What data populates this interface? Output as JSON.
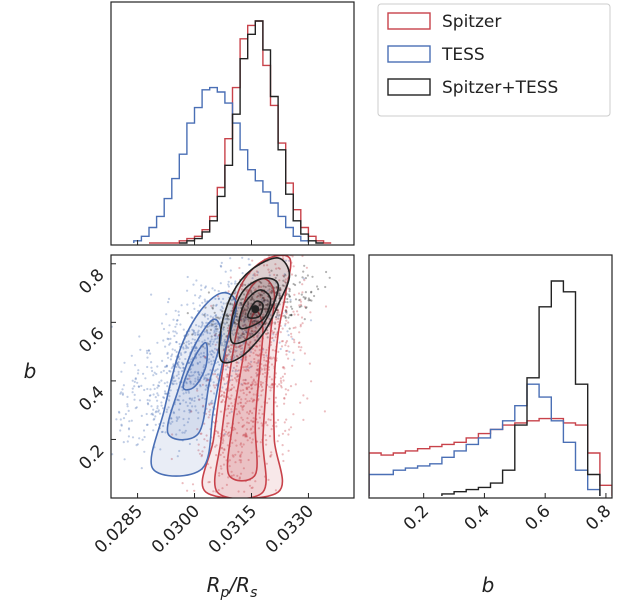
{
  "chart_data": [
    {
      "panel": "top-left",
      "type": "histogram",
      "x_param": "Rp/Rs",
      "xlim": [
        0.0278,
        0.0342
      ],
      "bin_width": 0.0002,
      "series": [
        {
          "name": "Spitzer",
          "color": "#c8424a",
          "x": [
            0.0289,
            0.0291,
            0.0293,
            0.0295,
            0.0297,
            0.0299,
            0.0301,
            0.0303,
            0.0305,
            0.0307,
            0.0309,
            0.0311,
            0.0313,
            0.0315,
            0.0317,
            0.0319,
            0.0321,
            0.0323,
            0.0325,
            0.0327,
            0.0329,
            0.0331,
            0.0333,
            0.0335
          ],
          "values": [
            0.0,
            0.0,
            0.0,
            0.0,
            0.01,
            0.02,
            0.03,
            0.06,
            0.12,
            0.25,
            0.47,
            0.7,
            0.92,
            0.98,
            1.0,
            0.8,
            0.62,
            0.45,
            0.27,
            0.15,
            0.07,
            0.03,
            0.01,
            0.0
          ]
        },
        {
          "name": "TESS",
          "color": "#4a6fb5",
          "x": [
            0.0285,
            0.0287,
            0.0289,
            0.0291,
            0.0293,
            0.0295,
            0.0297,
            0.0299,
            0.0301,
            0.0303,
            0.0305,
            0.0307,
            0.0309,
            0.0311,
            0.0313,
            0.0315,
            0.0317,
            0.0319,
            0.0321,
            0.0323,
            0.0325,
            0.0327,
            0.0329
          ],
          "values": [
            0.01,
            0.03,
            0.07,
            0.12,
            0.2,
            0.29,
            0.4,
            0.54,
            0.61,
            0.69,
            0.7,
            0.68,
            0.63,
            0.54,
            0.42,
            0.33,
            0.28,
            0.23,
            0.18,
            0.12,
            0.07,
            0.03,
            0.01
          ]
        },
        {
          "name": "Spitzer+TESS",
          "color": "#222222",
          "x": [
            0.0297,
            0.0299,
            0.0301,
            0.0303,
            0.0305,
            0.0307,
            0.0309,
            0.0311,
            0.0313,
            0.0315,
            0.0317,
            0.0319,
            0.0321,
            0.0323,
            0.0325,
            0.0327,
            0.0329,
            0.0331,
            0.0333
          ],
          "values": [
            0.0,
            0.01,
            0.02,
            0.05,
            0.1,
            0.21,
            0.35,
            0.58,
            0.83,
            0.94,
            1.0,
            0.87,
            0.66,
            0.42,
            0.22,
            0.1,
            0.04,
            0.01,
            0.0
          ]
        }
      ]
    },
    {
      "panel": "bottom-left",
      "type": "scatter",
      "xlabel": "R_p/R_s",
      "ylabel": "b",
      "xlim": [
        0.0278,
        0.0342
      ],
      "ylim": [
        0.0,
        0.83
      ],
      "xticks": [
        "0.0285",
        "0.0300",
        "0.0315",
        "0.0330"
      ],
      "yticks": [
        "0.2",
        "0.4",
        "0.6",
        "0.8"
      ],
      "contours": [
        {
          "name": "Spitzer",
          "color": "#c8424a",
          "levels": [
            [
              [
                0.0303,
                0.02
              ],
              [
                0.0305,
                0.2
              ],
              [
                0.0307,
                0.4
              ],
              [
                0.0309,
                0.56
              ],
              [
                0.0312,
                0.72
              ],
              [
                0.0318,
                0.81
              ],
              [
                0.0325,
                0.82
              ],
              [
                0.0324,
                0.7
              ],
              [
                0.0322,
                0.56
              ],
              [
                0.0321,
                0.4
              ],
              [
                0.0321,
                0.2
              ],
              [
                0.0322,
                0.02
              ]
            ],
            [
              [
                0.0306,
                0.02
              ],
              [
                0.0307,
                0.2
              ],
              [
                0.0309,
                0.4
              ],
              [
                0.0311,
                0.56
              ],
              [
                0.0314,
                0.7
              ],
              [
                0.0318,
                0.75
              ],
              [
                0.0321,
                0.7
              ],
              [
                0.032,
                0.56
              ],
              [
                0.0319,
                0.4
              ],
              [
                0.0318,
                0.2
              ],
              [
                0.0318,
                0.02
              ]
            ],
            [
              [
                0.0309,
                0.08
              ],
              [
                0.031,
                0.25
              ],
              [
                0.0312,
                0.42
              ],
              [
                0.0314,
                0.56
              ],
              [
                0.0316,
                0.64
              ],
              [
                0.0318,
                0.58
              ],
              [
                0.0317,
                0.42
              ],
              [
                0.0316,
                0.25
              ],
              [
                0.0316,
                0.08
              ]
            ]
          ]
        },
        {
          "name": "TESS",
          "color": "#4a6fb5",
          "levels": [
            [
              [
                0.0289,
                0.1
              ],
              [
                0.0292,
                0.3
              ],
              [
                0.0296,
                0.5
              ],
              [
                0.0301,
                0.63
              ],
              [
                0.0307,
                0.7
              ],
              [
                0.0311,
                0.66
              ],
              [
                0.0308,
                0.5
              ],
              [
                0.0305,
                0.3
              ],
              [
                0.0302,
                0.1
              ]
            ],
            [
              [
                0.0293,
                0.22
              ],
              [
                0.0296,
                0.38
              ],
              [
                0.03,
                0.52
              ],
              [
                0.0305,
                0.61
              ],
              [
                0.0307,
                0.55
              ],
              [
                0.0304,
                0.4
              ],
              [
                0.0301,
                0.22
              ]
            ],
            [
              [
                0.0297,
                0.38
              ],
              [
                0.03,
                0.48
              ],
              [
                0.0303,
                0.53
              ],
              [
                0.0303,
                0.45
              ],
              [
                0.03,
                0.38
              ]
            ]
          ]
        },
        {
          "name": "Spitzer+TESS",
          "color": "#222222",
          "levels": [
            [
              [
                0.0307,
                0.47
              ],
              [
                0.0307,
                0.58
              ],
              [
                0.031,
                0.7
              ],
              [
                0.0315,
                0.78
              ],
              [
                0.0322,
                0.82
              ],
              [
                0.0325,
                0.76
              ],
              [
                0.0322,
                0.66
              ],
              [
                0.0318,
                0.56
              ],
              [
                0.0312,
                0.48
              ]
            ],
            [
              [
                0.031,
                0.53
              ],
              [
                0.031,
                0.62
              ],
              [
                0.0313,
                0.71
              ],
              [
                0.0318,
                0.75
              ],
              [
                0.0322,
                0.73
              ],
              [
                0.032,
                0.64
              ],
              [
                0.0316,
                0.56
              ]
            ],
            [
              [
                0.0312,
                0.58
              ],
              [
                0.0313,
                0.66
              ],
              [
                0.0317,
                0.71
              ],
              [
                0.032,
                0.68
              ],
              [
                0.0318,
                0.61
              ]
            ],
            [
              [
                0.0314,
                0.62
              ],
              [
                0.0316,
                0.67
              ],
              [
                0.0318,
                0.66
              ],
              [
                0.0317,
                0.62
              ]
            ]
          ]
        }
      ],
      "point_clouds": [
        {
          "name": "TESS",
          "color": "#4a6fb5",
          "center": [
            0.0301,
            0.48
          ],
          "spread": [
            0.0008,
            0.15
          ],
          "tilt": 230,
          "n": 900,
          "clip_y": [
            0.02,
            0.83
          ]
        },
        {
          "name": "Spitzer",
          "color": "#c8424a",
          "center": [
            0.0315,
            0.42
          ],
          "spread": [
            0.0006,
            0.21
          ],
          "tilt": 35,
          "n": 900,
          "clip_y": [
            0.02,
            0.83
          ]
        },
        {
          "name": "Spitzer+TESS",
          "color": "#222222",
          "center": [
            0.0317,
            0.65
          ],
          "spread": [
            0.0006,
            0.05
          ],
          "tilt": 80,
          "n": 400,
          "clip_y": [
            0.02,
            0.83
          ]
        }
      ],
      "peak": {
        "x": 0.0316,
        "y": 0.645
      }
    },
    {
      "panel": "bottom-right",
      "type": "histogram",
      "xlabel": "b",
      "xlim": [
        0.02,
        0.82
      ],
      "xticks": [
        "0.2",
        "0.4",
        "0.6",
        "0.8"
      ],
      "bin_width": 0.04,
      "series": [
        {
          "name": "Spitzer",
          "color": "#c8424a",
          "x": [
            0.04,
            0.08,
            0.12,
            0.16,
            0.2,
            0.24,
            0.28,
            0.32,
            0.36,
            0.4,
            0.44,
            0.48,
            0.52,
            0.56,
            0.6,
            0.64,
            0.68,
            0.72,
            0.76,
            0.8
          ],
          "values": [
            0.2,
            0.19,
            0.2,
            0.21,
            0.22,
            0.23,
            0.24,
            0.25,
            0.27,
            0.29,
            0.31,
            0.33,
            0.34,
            0.35,
            0.36,
            0.36,
            0.34,
            0.33,
            0.2,
            0.05
          ]
        },
        {
          "name": "TESS",
          "color": "#4a6fb5",
          "x": [
            0.04,
            0.08,
            0.12,
            0.16,
            0.2,
            0.24,
            0.28,
            0.32,
            0.36,
            0.4,
            0.44,
            0.48,
            0.52,
            0.56,
            0.6,
            0.64,
            0.68,
            0.72,
            0.76
          ],
          "values": [
            0.1,
            0.1,
            0.12,
            0.13,
            0.14,
            0.15,
            0.18,
            0.21,
            0.24,
            0.27,
            0.31,
            0.35,
            0.42,
            0.52,
            0.46,
            0.35,
            0.25,
            0.12,
            0.03
          ]
        },
        {
          "name": "Spitzer+TESS",
          "color": "#222222",
          "x": [
            0.28,
            0.32,
            0.36,
            0.4,
            0.44,
            0.48,
            0.52,
            0.56,
            0.6,
            0.64,
            0.68,
            0.72,
            0.76
          ],
          "values": [
            0.01,
            0.02,
            0.03,
            0.04,
            0.06,
            0.12,
            0.33,
            0.55,
            0.88,
            1.0,
            0.95,
            0.52,
            0.1
          ]
        }
      ]
    }
  ],
  "legend": {
    "placement": "top-right",
    "entries": [
      {
        "label": "Spitzer",
        "color": "#c8424a"
      },
      {
        "label": "TESS",
        "color": "#4a6fb5"
      },
      {
        "label": "Spitzer+TESS",
        "color": "#222222"
      }
    ]
  }
}
